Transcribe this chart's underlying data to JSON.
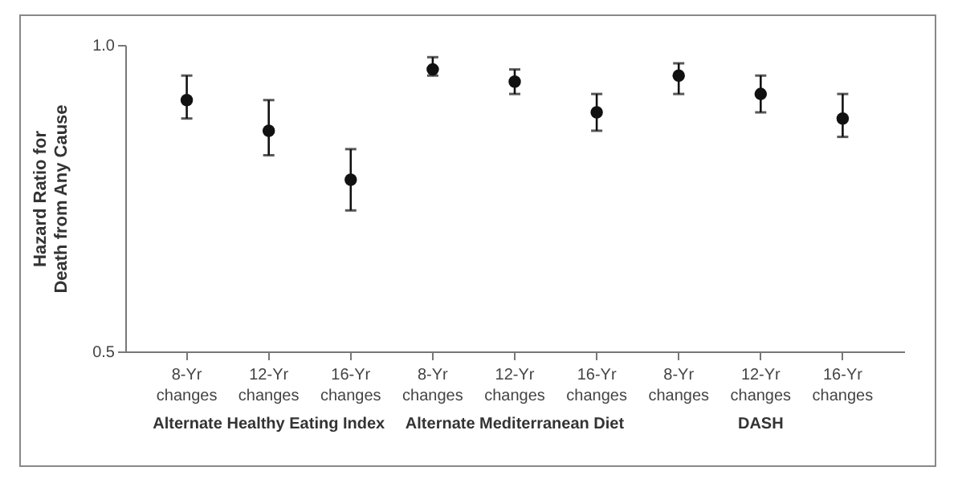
{
  "chart_data": {
    "type": "scatter",
    "ylabel": "Hazard Ratio for Death from Any Cause",
    "categories": [
      "8-Yr changes",
      "12-Yr changes",
      "16-Yr changes",
      "8-Yr changes",
      "12-Yr changes",
      "16-Yr changes",
      "8-Yr changes",
      "12-Yr changes",
      "16-Yr changes"
    ],
    "values": [
      0.91,
      0.86,
      0.78,
      0.96,
      0.94,
      0.89,
      0.95,
      0.92,
      0.88
    ],
    "errors": [
      [
        0.88,
        0.95
      ],
      [
        0.82,
        0.91
      ],
      [
        0.73,
        0.83
      ],
      [
        0.95,
        0.98
      ],
      [
        0.92,
        0.96
      ],
      [
        0.86,
        0.92
      ],
      [
        0.92,
        0.97
      ],
      [
        0.89,
        0.95
      ],
      [
        0.85,
        0.92
      ]
    ],
    "color": "#111111",
    "marker": "circle",
    "ylim": [
      0.5,
      1.0
    ],
    "yticks": [
      0.5,
      {
        "value": 1,
        "label": "1.0"
      }
    ],
    "grid": false,
    "annotations": [
      "Alternate Healthy Eating Index",
      "Alternate Mediterranean Diet",
      "DASH"
    ]
  }
}
